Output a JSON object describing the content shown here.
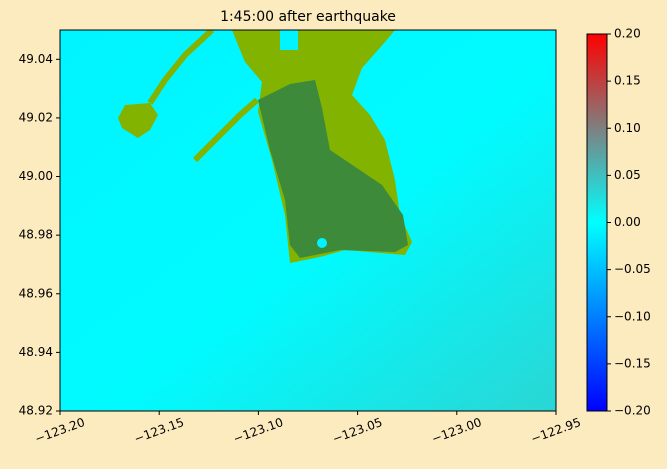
{
  "chart_data": {
    "type": "heatmap",
    "title": "1:45:00 after earthquake",
    "xlim": [
      -123.2,
      -122.95
    ],
    "xticks": [
      {
        "value": -123.2,
        "label": "−123.20"
      },
      {
        "value": -123.15,
        "label": "−123.15"
      },
      {
        "value": -123.1,
        "label": "−123.10"
      },
      {
        "value": -123.05,
        "label": "−123.05"
      },
      {
        "value": -123.0,
        "label": "−123.00"
      },
      {
        "value": -122.95,
        "label": "−122.95"
      }
    ],
    "ylim": [
      48.92,
      49.05
    ],
    "yticks": [
      48.92,
      48.94,
      48.96,
      48.98,
      {
        "value": 49.0,
        "label": "49.00"
      },
      49.02,
      49.04
    ],
    "colorbar": {
      "clim": [
        -0.2,
        0.2
      ],
      "colors": [
        "#0000ff",
        "#00ffff",
        "#ff0000"
      ],
      "ticks": [
        {
          "value": -0.2,
          "label": "−0.20"
        },
        {
          "value": -0.15,
          "label": "−0.15"
        },
        {
          "value": -0.1,
          "label": "−0.10"
        },
        {
          "value": -0.05,
          "label": "−0.05"
        },
        {
          "value": 0,
          "label": "0.00"
        },
        {
          "value": 0.05,
          "label": "0.05"
        },
        {
          "value": 0.1,
          "label": "0.10"
        },
        {
          "value": 0.15,
          "label": "0.15"
        },
        {
          "value": 0.2,
          "label": "0.20"
        }
      ]
    }
  }
}
